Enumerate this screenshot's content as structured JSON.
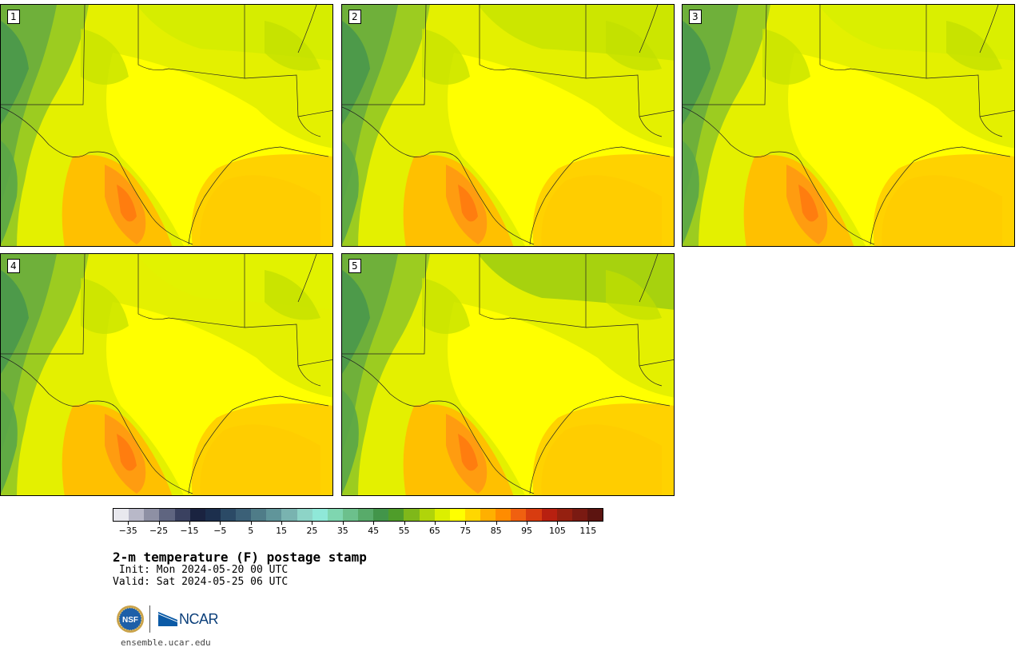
{
  "title": "2-m temperature (F) postage stamp",
  "init": " Init: Mon 2024-05-20 00 UTC",
  "valid": "Valid: Sat 2024-05-25 06 UTC",
  "panels": [
    {
      "label": "1"
    },
    {
      "label": "2"
    },
    {
      "label": "3"
    },
    {
      "label": "4"
    },
    {
      "label": "5"
    }
  ],
  "colorbar": {
    "ticks": [
      "−35",
      "−25",
      "−15",
      "−5",
      "5",
      "15",
      "25",
      "35",
      "45",
      "55",
      "65",
      "75",
      "85",
      "95",
      "105",
      "115"
    ],
    "range": [
      -40,
      120
    ],
    "colors": [
      "#e8e8ee",
      "#b8b8c8",
      "#8e90a4",
      "#5f6580",
      "#3a4160",
      "#1a2340",
      "#1c2f4d",
      "#2b4a66",
      "#3b6077",
      "#4f7c88",
      "#60959a",
      "#79b3b0",
      "#8dd4c7",
      "#8fe8d8",
      "#7fd6b0",
      "#6cc08c",
      "#58ab6a",
      "#42954a",
      "#4f9d2a",
      "#7fb81a",
      "#b0d40a",
      "#dcef00",
      "#ffff00",
      "#ffd700",
      "#ffb000",
      "#ff8c00",
      "#f06010",
      "#d83c10",
      "#b82010",
      "#952010",
      "#7a1a12",
      "#5c1410"
    ]
  },
  "logo": {
    "nsf": "NSF",
    "ncar": "NCAR"
  },
  "site": "ensemble.ucar.edu"
}
